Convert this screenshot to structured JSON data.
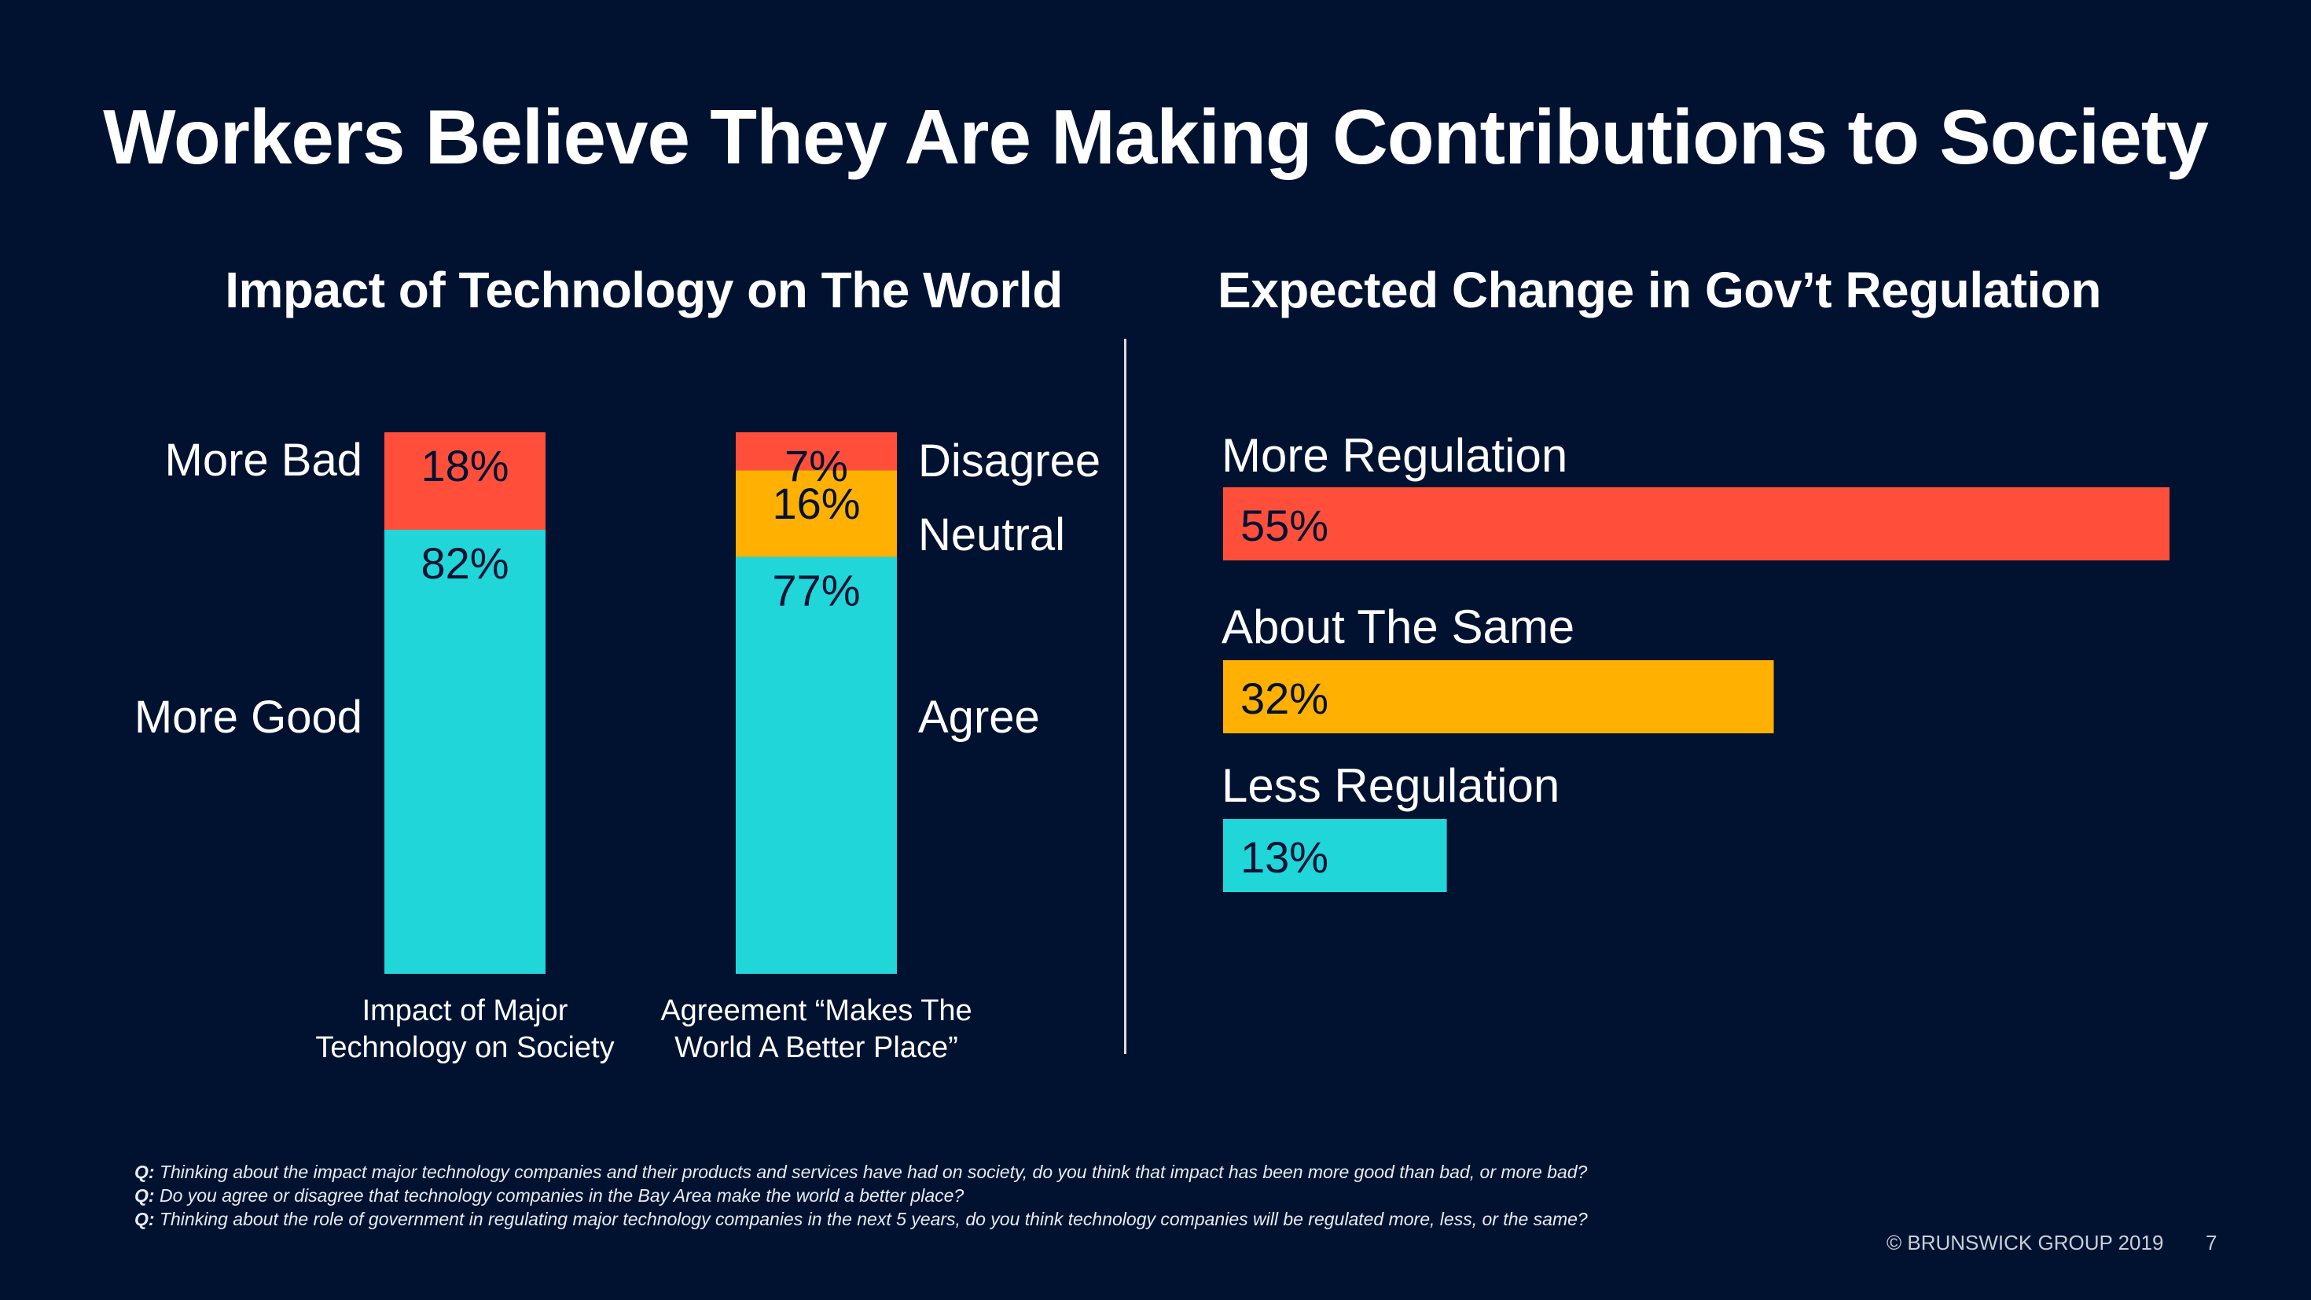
{
  "slide": {
    "title": "Workers Believe They Are Making Contributions to Society",
    "copyright": "© BRUNSWICK GROUP 2019",
    "page_number": "7",
    "footnotes": [
      {
        "prefix": "Q:",
        "text": " Thinking about the impact major technology companies and their products and services have had on society, do you think that impact has been more good than bad, or more bad?"
      },
      {
        "prefix": "Q:",
        "text": " Do you agree or disagree that technology companies in the Bay Area make the world a better place?"
      },
      {
        "prefix": "Q:",
        "text": " Thinking about the role of government in regulating major technology companies in the next 5 years, do you think technology companies will be regulated more, less, or the same?"
      }
    ]
  },
  "colors": {
    "background": "#011231",
    "red": "#ff4f3b",
    "yellow": "#ffb000",
    "cyan": "#20d6d8",
    "label_dark": "#011233"
  },
  "chart_data": [
    {
      "type": "bar",
      "stacked": true,
      "orientation": "vertical",
      "title": "Impact of Technology on The World",
      "categories": [
        "Impact of Major Technology on Society",
        "Agreement “Makes The World A Better Place”"
      ],
      "category_lines": [
        [
          "Impact of Major",
          "Technology on Society"
        ],
        [
          "Agreement “Makes The",
          "World A Better Place”"
        ]
      ],
      "series": [
        {
          "name": "More Good / Agree",
          "color": "#20d6d8",
          "values": [
            82,
            77
          ]
        },
        {
          "name": "Neutral",
          "color": "#ffb000",
          "values": [
            0,
            16
          ]
        },
        {
          "name": "More Bad / Disagree",
          "color": "#ff4f3b",
          "values": [
            18,
            7
          ]
        }
      ],
      "segment_labels": [
        [
          "82%",
          "",
          "18%"
        ],
        [
          "77%",
          "16%",
          "7%"
        ]
      ],
      "left_labels": [
        {
          "text": "More Bad",
          "series": 2
        },
        {
          "text": "More Good",
          "series": 0
        }
      ],
      "right_labels": [
        {
          "text": "Disagree",
          "series": 2
        },
        {
          "text": "Neutral",
          "series": 1
        },
        {
          "text": "Agree",
          "series": 0
        }
      ],
      "ylim": [
        0,
        100
      ]
    },
    {
      "type": "bar",
      "orientation": "horizontal",
      "title": "Expected Change in Gov’t Regulation",
      "categories": [
        "More Regulation",
        "About The Same",
        "Less Regulation"
      ],
      "values": [
        55,
        32,
        13
      ],
      "value_labels": [
        "55%",
        "32%",
        "13%"
      ],
      "colors": [
        "#ff4f3b",
        "#ffb000",
        "#20d6d8"
      ],
      "xlim": [
        0,
        55
      ]
    }
  ]
}
